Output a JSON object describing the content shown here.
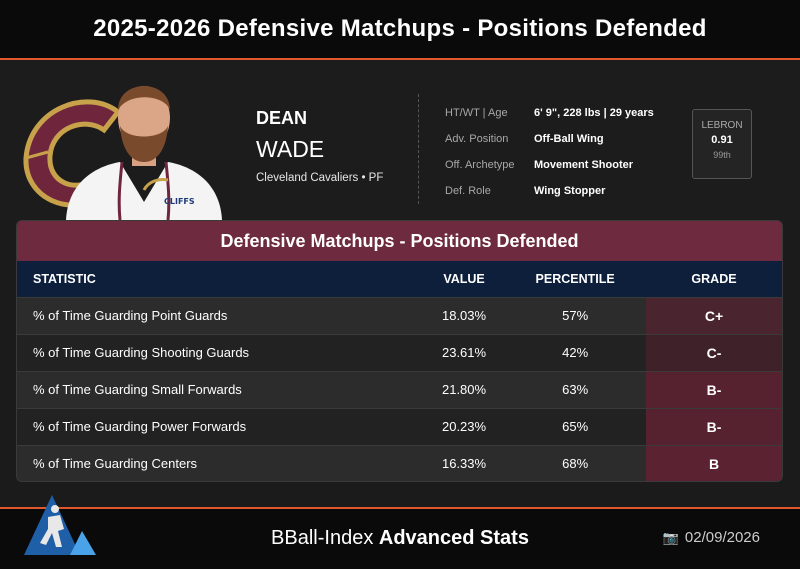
{
  "header": {
    "title": "2025-2026 Defensive Matchups - Positions Defended"
  },
  "player": {
    "first_name": "DEAN",
    "last_name": "WADE",
    "team_line": "Cleveland Cavaliers • PF",
    "jersey_text": "CLIFFS"
  },
  "info": [
    {
      "label": "HT/WT | Age",
      "value": "6' 9\", 228 lbs | 29 years"
    },
    {
      "label": "Adv. Position",
      "value": "Off-Ball Wing"
    },
    {
      "label": "Off. Archetype",
      "value": "Movement Shooter"
    },
    {
      "label": "Def. Role",
      "value": "Wing Stopper"
    }
  ],
  "lebron": {
    "label": "LEBRON",
    "value": "0.91",
    "percentile": "99th"
  },
  "table": {
    "title": "Defensive Matchups - Positions Defended",
    "headers": {
      "statistic": "STATISTIC",
      "value": "VALUE",
      "percentile": "PERCENTILE",
      "grade": "GRADE"
    },
    "rows": [
      {
        "stat": "% of Time Guarding Point Guards",
        "value": "18.03%",
        "percentile": "57%",
        "grade": "C+",
        "grade_color": "#4a2530"
      },
      {
        "stat": "% of Time Guarding Shooting Guards",
        "value": "23.61%",
        "percentile": "42%",
        "grade": "C-",
        "grade_color": "#3f2229"
      },
      {
        "stat": "% of Time Guarding Small Forwards",
        "value": "21.80%",
        "percentile": "63%",
        "grade": "B-",
        "grade_color": "#56222f"
      },
      {
        "stat": "% of Time Guarding Power Forwards",
        "value": "20.23%",
        "percentile": "65%",
        "grade": "B-",
        "grade_color": "#56222f"
      },
      {
        "stat": "% of Time Guarding Centers",
        "value": "16.33%",
        "percentile": "68%",
        "grade": "B",
        "grade_color": "#5b2332"
      }
    ]
  },
  "footer": {
    "brand_light": "BBall-Index ",
    "brand_bold": "Advanced Stats",
    "date": "02/09/2026",
    "date_icon": "camera-icon"
  },
  "colors": {
    "accent": "#e0572b",
    "title_bar": "#6e2a3e",
    "table_header": "#0e1f3c",
    "cavs_wine": "#6f263d",
    "cavs_gold": "#c8a14b"
  }
}
